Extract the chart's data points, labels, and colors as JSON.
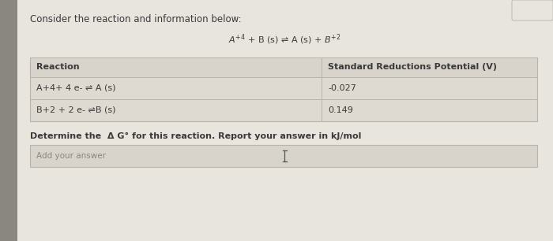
{
  "title_text": "Consider the reaction and information below:",
  "table_headers": [
    "Reaction",
    "Standard Reductions Potential (V)"
  ],
  "row1_reaction": "A+4+ 4 e- ⇌ A (s)",
  "row2_reaction": "B+2 + 2 e- ⇌B (s)",
  "row1_potential": "-0.027",
  "row2_potential": "0.149",
  "determine_text": "Determine the  Δ G° for this reaction. Report your answer in kJ/mol",
  "answer_placeholder": "Add your answer",
  "bg_color": "#c8c5be",
  "content_bg": "#e8e5de",
  "table_bg": "#dedad2",
  "header_bg": "#d8d4cc",
  "answer_box_bg": "#d8d4cc",
  "text_color": "#3a3a3a",
  "border_color": "#b8b4ac",
  "sidebar_color": "#8a8680",
  "font_size_title": 8.5,
  "font_size_table": 8,
  "font_size_determine": 8,
  "font_size_placeholder": 7.5,
  "col_split": 0.575
}
